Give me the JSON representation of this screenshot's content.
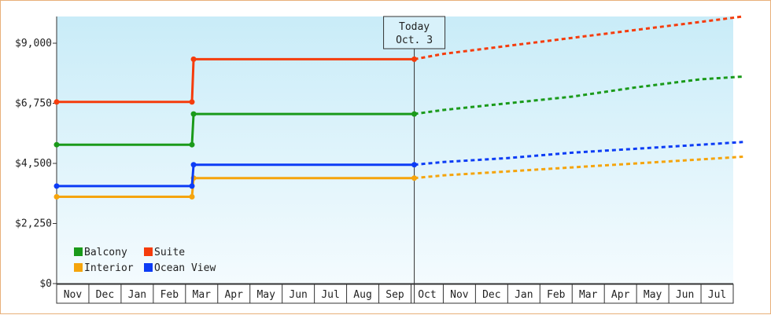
{
  "chart_data": {
    "type": "line",
    "title": "",
    "xlabel": "",
    "ylabel": "",
    "ylim": [
      0,
      10000
    ],
    "y_ticks": [
      "$0",
      "$2,250",
      "$4,500",
      "$6,750",
      "$9,000"
    ],
    "y_tick_values": [
      0,
      2250,
      4500,
      6750,
      9000
    ],
    "x_months": [
      "Nov",
      "Dec",
      "Jan",
      "Feb",
      "Mar",
      "Apr",
      "May",
      "Jun",
      "Jul",
      "Aug",
      "Sep",
      "Oct",
      "Nov",
      "Dec",
      "Jan",
      "Feb",
      "Mar",
      "Apr",
      "May",
      "Jun",
      "Jul"
    ],
    "today_marker": {
      "line1": "Today",
      "line2": "Oct. 3",
      "month_position": 11.1
    },
    "legend_position": "bottom-left",
    "background_gradient": [
      "#c9ecf8",
      "#f4fbfe"
    ],
    "series": [
      {
        "name": "Balcony",
        "color": "#1a9a1a",
        "actual": [
          [
            0,
            5200
          ],
          [
            4.2,
            5200
          ],
          [
            4.25,
            6350
          ],
          [
            11.1,
            6350
          ]
        ],
        "forecast": [
          [
            11.1,
            6350
          ],
          [
            12,
            6500
          ],
          [
            14,
            6750
          ],
          [
            16,
            7000
          ],
          [
            18,
            7350
          ],
          [
            20,
            7650
          ],
          [
            21.3,
            7750
          ]
        ]
      },
      {
        "name": "Suite",
        "color": "#f53c0c",
        "actual": [
          [
            0,
            6800
          ],
          [
            4.2,
            6800
          ],
          [
            4.25,
            8400
          ],
          [
            11.1,
            8400
          ]
        ],
        "forecast": [
          [
            11.1,
            8400
          ],
          [
            12,
            8600
          ],
          [
            14,
            8900
          ],
          [
            16,
            9200
          ],
          [
            18,
            9500
          ],
          [
            20,
            9800
          ],
          [
            21.3,
            10000
          ]
        ]
      },
      {
        "name": "Interior",
        "color": "#f5a40c",
        "actual": [
          [
            0,
            3250
          ],
          [
            4.2,
            3250
          ],
          [
            4.25,
            3950
          ],
          [
            11.1,
            3950
          ]
        ],
        "forecast": [
          [
            11.1,
            3950
          ],
          [
            12,
            4050
          ],
          [
            14,
            4200
          ],
          [
            16,
            4350
          ],
          [
            18,
            4500
          ],
          [
            20,
            4650
          ],
          [
            21.3,
            4750
          ]
        ]
      },
      {
        "name": "Ocean View",
        "color": "#0c3cf5",
        "actual": [
          [
            0,
            3650
          ],
          [
            4.2,
            3650
          ],
          [
            4.25,
            4450
          ],
          [
            11.1,
            4450
          ]
        ],
        "forecast": [
          [
            11.1,
            4450
          ],
          [
            12,
            4550
          ],
          [
            14,
            4700
          ],
          [
            16,
            4900
          ],
          [
            18,
            5050
          ],
          [
            20,
            5200
          ],
          [
            21.3,
            5300
          ]
        ]
      }
    ],
    "legend_order": [
      "Balcony",
      "Suite",
      "Interior",
      "Ocean View"
    ]
  }
}
